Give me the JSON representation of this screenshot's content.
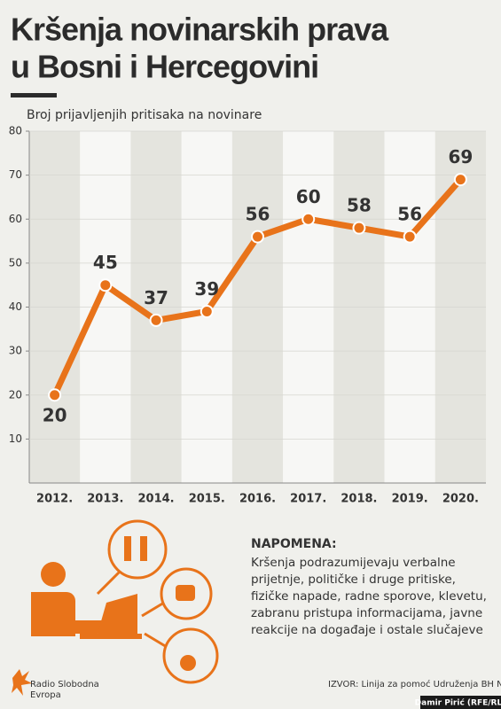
{
  "chart_data": {
    "type": "line",
    "title": [
      "Kršenja novinarskih prava",
      "u Bosni i Hercegovini"
    ],
    "subtitle": "Broj prijavljenjih pritisaka na novinare",
    "categories": [
      "2012.",
      "2013.",
      "2014.",
      "2015.",
      "2016.",
      "2017.",
      "2018.",
      "2019.",
      "2020."
    ],
    "values": [
      20,
      45,
      37,
      39,
      56,
      60,
      58,
      56,
      69
    ],
    "color": "#e8731a",
    "ylim": [
      0,
      80
    ],
    "yticks": [
      10,
      20,
      30,
      40,
      50,
      60,
      70,
      80
    ],
    "grid": true
  },
  "note": {
    "title": "NAPOMENA:",
    "lines": [
      "Kršenja podrazumijevaju verbalne",
      "prijetnje, političke i druge pritiske,",
      "fizičke napade, radne sporove, klevetu,",
      "zabranu pristupa informacijama, javne",
      "reakcije na događaje i ostale slučajeve"
    ]
  },
  "footer": {
    "logo": [
      "Radio Slobodna",
      "Evropa"
    ],
    "source": "IZVOR: Linija za pomoć Udruženja BH Novinari",
    "credit": "Damir Pirić (RFE/RL)"
  }
}
